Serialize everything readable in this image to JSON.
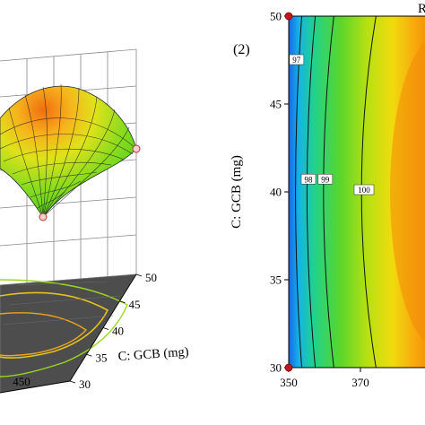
{
  "panel_label": "(2)",
  "clipped_title_fragment": "R",
  "chart_data": [
    {
      "type": "surface",
      "zlabel": "",
      "axes": {
        "C": {
          "label": "C: GCB (mg)",
          "ticks": [
            30,
            35,
            40,
            45,
            50
          ]
        },
        "other_visible_ticks": [
          450
        ]
      },
      "design_points": 3,
      "contour_projection": true
    },
    {
      "type": "contour",
      "xlabel": "",
      "ylabel": "C: GCB (mg)",
      "x_ticks": [
        "350",
        "370",
        "3"
      ],
      "y_ticks": [
        "30",
        "35",
        "40",
        "45",
        "50"
      ],
      "xlim": [
        350,
        390
      ],
      "ylim": [
        30,
        50
      ],
      "contour_labels": [
        {
          "value": "97",
          "x": 352.2,
          "y": 47.5
        },
        {
          "value": "98",
          "x": 355.5,
          "y": 40.7
        },
        {
          "value": "99",
          "x": 360.2,
          "y": 40.7
        },
        {
          "value": "100",
          "x": 371.0,
          "y": 40.1
        }
      ],
      "design_points": [
        [
          350,
          50
        ],
        [
          350,
          30
        ]
      ]
    }
  ]
}
